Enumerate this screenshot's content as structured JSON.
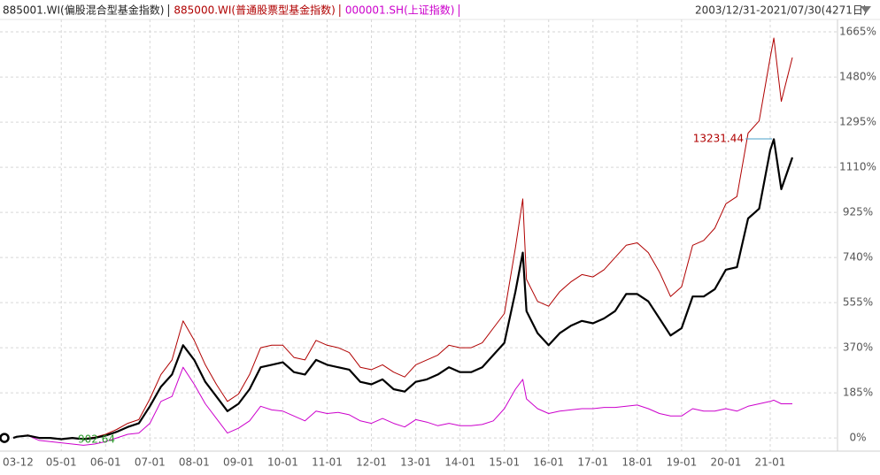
{
  "chart_data": {
    "type": "line",
    "date_range": "2003/12/31-2021/07/30(4271日)",
    "x": [
      "03-12",
      "04-01",
      "04-04",
      "04-07",
      "04-10",
      "05-01",
      "05-04",
      "05-07",
      "05-10",
      "06-01",
      "06-04",
      "06-07",
      "06-10",
      "07-01",
      "07-04",
      "07-07",
      "07-10",
      "08-01",
      "08-04",
      "08-07",
      "08-10",
      "09-01",
      "09-04",
      "09-07",
      "09-10",
      "10-01",
      "10-04",
      "10-07",
      "10-10",
      "11-01",
      "11-04",
      "11-07",
      "11-10",
      "12-01",
      "12-04",
      "12-07",
      "12-10",
      "13-01",
      "13-04",
      "13-07",
      "13-10",
      "14-01",
      "14-04",
      "14-07",
      "14-10",
      "15-01",
      "15-04",
      "15-06",
      "15-07",
      "15-10",
      "16-01",
      "16-04",
      "16-07",
      "16-10",
      "17-01",
      "17-04",
      "17-07",
      "17-10",
      "18-01",
      "18-04",
      "18-07",
      "18-10",
      "19-01",
      "19-04",
      "19-07",
      "19-10",
      "20-01",
      "20-04",
      "20-07",
      "20-10",
      "21-01",
      "21-02",
      "21-04",
      "21-07"
    ],
    "series": [
      {
        "name": "885001.WI(偏股混合型基金指数)",
        "color": "#000000",
        "width": 2.2,
        "values": [
          0,
          5,
          10,
          0,
          0,
          -5,
          0,
          -5,
          0,
          10,
          25,
          45,
          60,
          130,
          210,
          260,
          380,
          320,
          230,
          170,
          110,
          140,
          200,
          290,
          300,
          310,
          270,
          260,
          320,
          300,
          290,
          280,
          230,
          220,
          240,
          200,
          190,
          230,
          240,
          260,
          290,
          270,
          270,
          290,
          340,
          390,
          600,
          760,
          520,
          430,
          380,
          430,
          460,
          480,
          470,
          490,
          520,
          590,
          590,
          560,
          490,
          420,
          450,
          580,
          580,
          610,
          690,
          700,
          900,
          940,
          1180,
          1225,
          1020,
          1150
        ]
      },
      {
        "name": "885000.WI(普通股票型基金指数)",
        "color": "#b00000",
        "width": 1,
        "values": [
          0,
          5,
          12,
          0,
          0,
          -5,
          0,
          -3,
          3,
          15,
          35,
          60,
          75,
          160,
          260,
          320,
          480,
          400,
          300,
          220,
          150,
          180,
          260,
          370,
          380,
          380,
          330,
          320,
          400,
          380,
          370,
          350,
          290,
          280,
          300,
          270,
          250,
          300,
          320,
          340,
          380,
          370,
          370,
          390,
          450,
          510,
          780,
          980,
          650,
          560,
          540,
          600,
          640,
          670,
          660,
          690,
          740,
          790,
          800,
          760,
          680,
          580,
          620,
          790,
          810,
          860,
          960,
          990,
          1250,
          1300,
          1560,
          1640,
          1380,
          1560
        ]
      },
      {
        "name": "000001.SH(上证指数)",
        "color": "#cc00cc",
        "width": 1,
        "values": [
          0,
          5,
          10,
          -10,
          -15,
          -20,
          -25,
          -30,
          -25,
          -15,
          0,
          15,
          20,
          60,
          150,
          170,
          290,
          220,
          140,
          80,
          20,
          40,
          70,
          130,
          115,
          110,
          90,
          70,
          110,
          100,
          105,
          95,
          70,
          60,
          80,
          60,
          45,
          75,
          65,
          50,
          60,
          50,
          50,
          55,
          70,
          120,
          200,
          240,
          160,
          120,
          100,
          110,
          115,
          120,
          120,
          125,
          125,
          130,
          135,
          120,
          100,
          90,
          90,
          120,
          110,
          110,
          120,
          110,
          130,
          140,
          150,
          155,
          140,
          140
        ]
      }
    ],
    "ylim": [
      -54,
      1716
    ],
    "yticks": [
      {
        "value": 1665,
        "label": "1665%"
      },
      {
        "value": 1480,
        "label": "1480%"
      },
      {
        "value": 1295,
        "label": "1295%"
      },
      {
        "value": 1110,
        "label": "1110%"
      },
      {
        "value": 925,
        "label": "925%"
      },
      {
        "value": 740,
        "label": "740%"
      },
      {
        "value": 555,
        "label": "555%"
      },
      {
        "value": 370,
        "label": "370%"
      },
      {
        "value": 185,
        "label": "185%"
      },
      {
        "value": 0,
        "label": "0%"
      }
    ],
    "xticks": [
      "03-12",
      "05-01",
      "06-01",
      "07-01",
      "08-01",
      "09-01",
      "10-01",
      "11-01",
      "12-01",
      "13-01",
      "14-01",
      "15-01",
      "16-01",
      "17-01",
      "18-01",
      "19-01",
      "20-01",
      "21-01"
    ],
    "annotations": [
      {
        "text": "13231.44",
        "color": "#b00000"
      },
      {
        "text": "902.64",
        "color": "#2a9a2a"
      }
    ],
    "grid": true
  }
}
